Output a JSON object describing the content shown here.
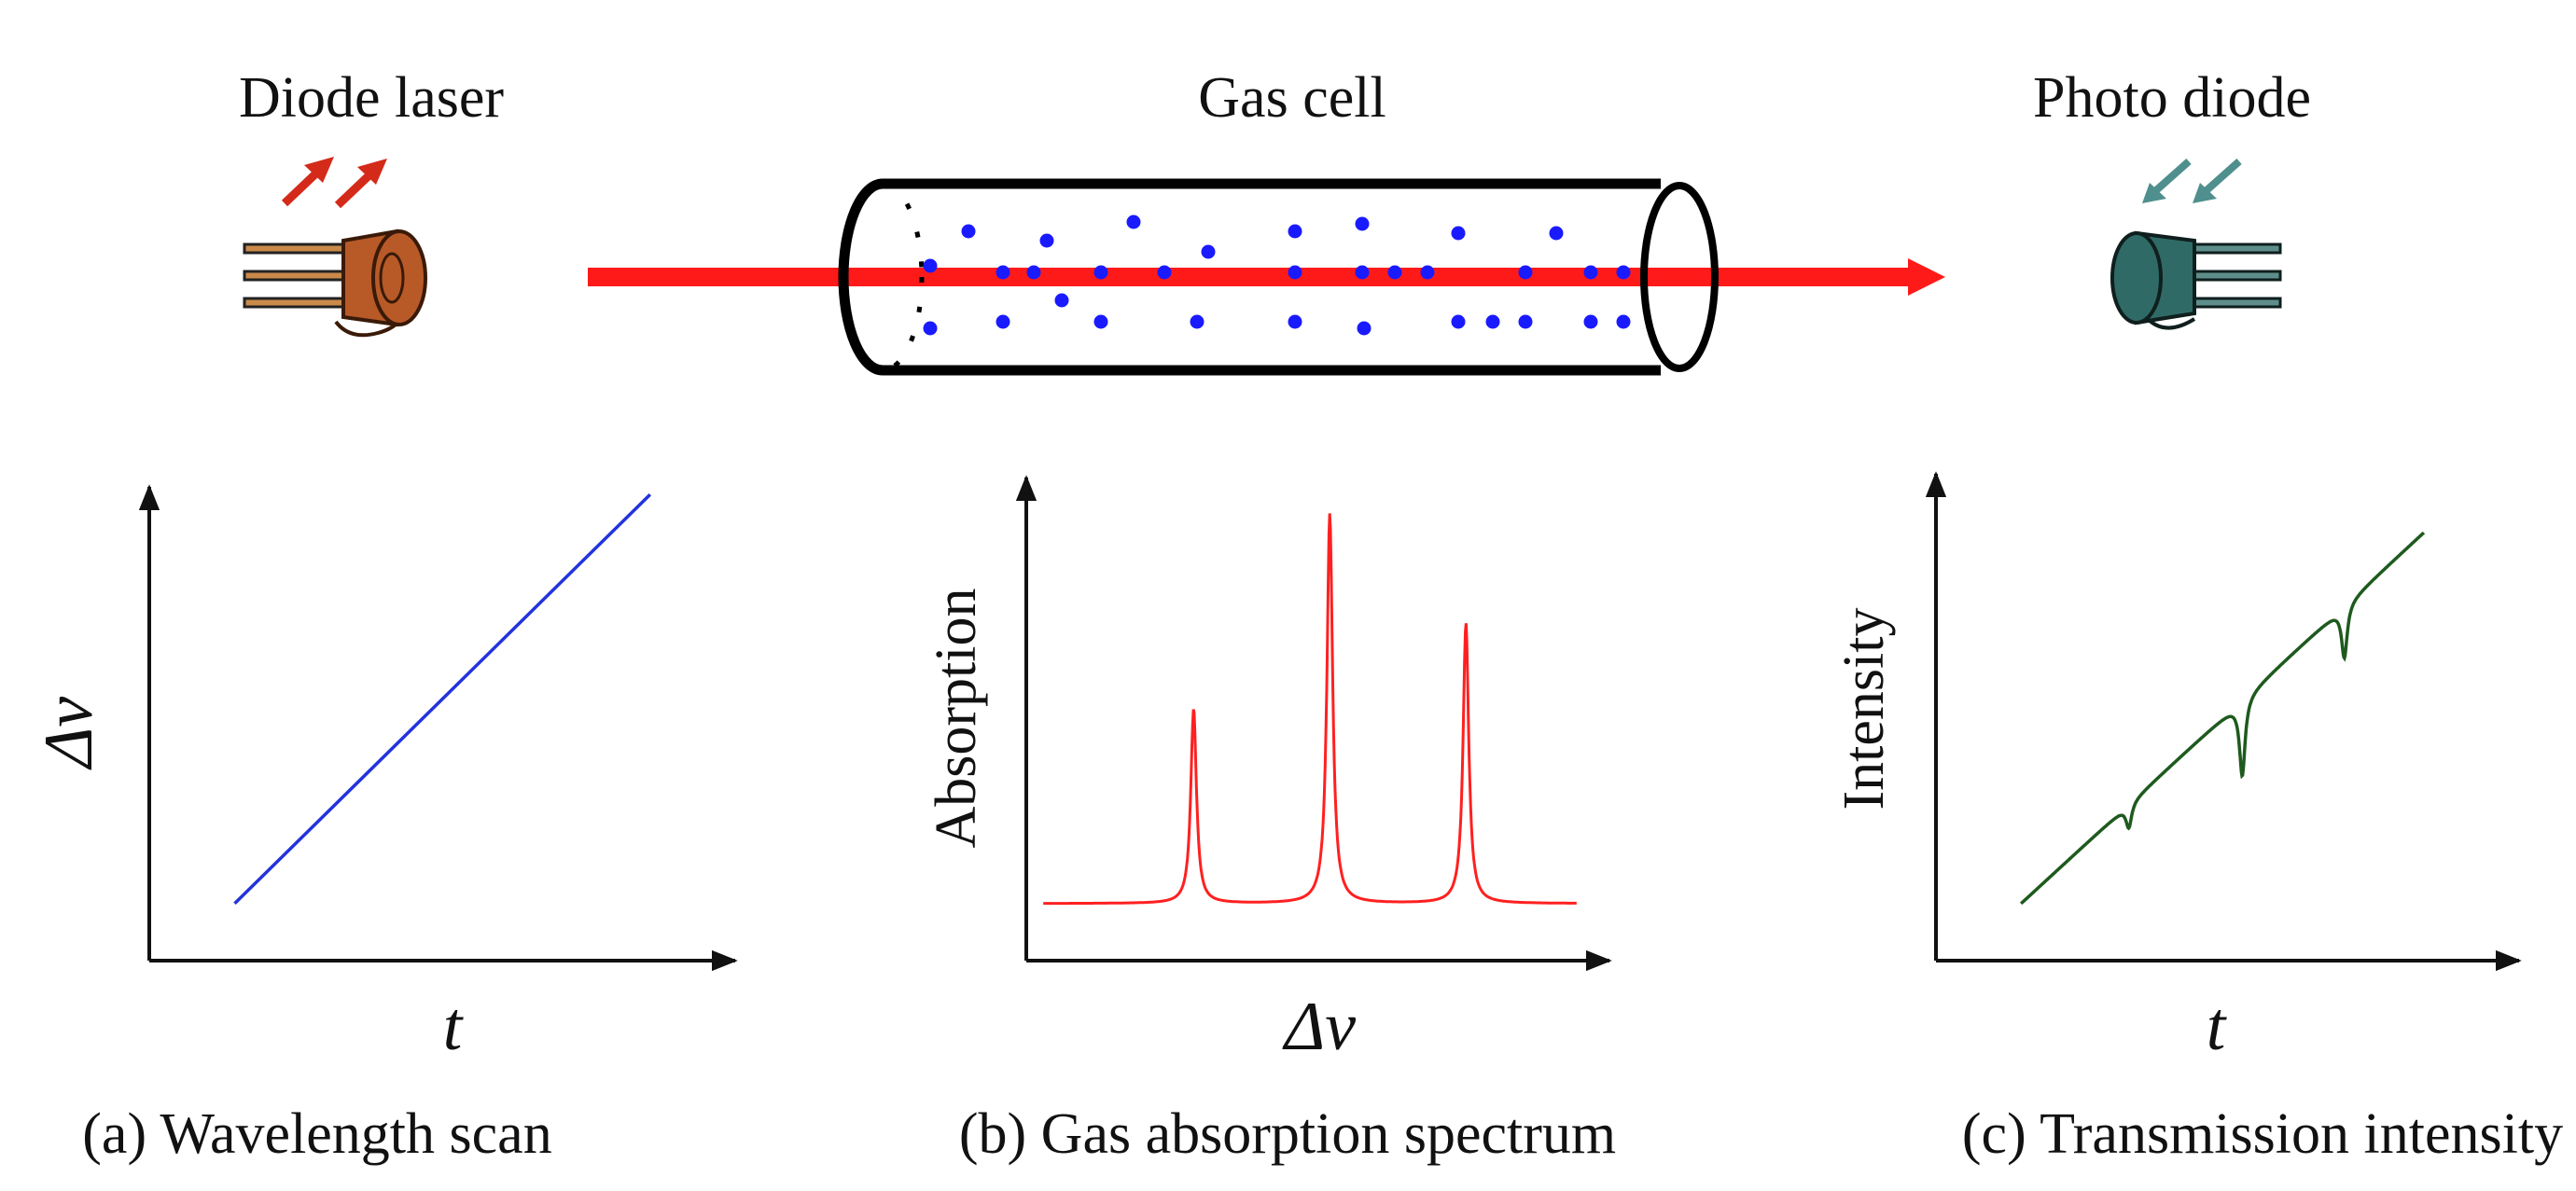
{
  "titles": {
    "laser": "Diode laser",
    "cell": "Gas cell",
    "detector": "Photo diode"
  },
  "colors": {
    "beam": "#ff1a1a",
    "molecules": "#1a1aff",
    "laser_body": "#b85a28",
    "detector_body": "#2f6a66",
    "arrow_red": "#d42a1a",
    "arrow_teal": "#4f8f8d",
    "scan_line": "#2233dd",
    "absorption_line": "#ff2020",
    "transmission_line": "#1e5a1e"
  },
  "icons": {
    "laser": "diode-laser-icon",
    "detector": "photo-diode-icon",
    "cell": "gas-cell-icon"
  },
  "chart_data": [
    {
      "type": "line",
      "id": "wavelength-scan",
      "title": "",
      "xlabel": "t",
      "ylabel": "Δν",
      "caption": "(a) Wavelength scan",
      "xlim": [
        0,
        1
      ],
      "ylim": [
        0,
        1
      ],
      "series": [
        {
          "name": "scan",
          "x": [
            0.15,
            0.88
          ],
          "y": [
            0.12,
            0.98
          ]
        }
      ]
    },
    {
      "type": "line",
      "id": "gas-absorption-spectrum",
      "title": "",
      "xlabel": "Δν",
      "ylabel": "Absorption",
      "caption": "(b) Gas absorption spectrum",
      "xlim": [
        0,
        1
      ],
      "ylim": [
        0,
        1
      ],
      "series": [
        {
          "name": "absorption",
          "baseline": 0.12,
          "x_range": [
            0.03,
            0.97
          ],
          "peaks": [
            {
              "center": 0.295,
              "height": 0.53,
              "width": 0.006
            },
            {
              "center": 0.535,
              "height": 0.94,
              "width": 0.006
            },
            {
              "center": 0.775,
              "height": 0.71,
              "width": 0.006
            }
          ]
        }
      ]
    },
    {
      "type": "line",
      "id": "transmission-intensity",
      "title": "",
      "xlabel": "t",
      "ylabel": "Intensity",
      "caption": "(c) Transmission intensity",
      "xlim": [
        0,
        1
      ],
      "ylim": [
        0,
        1
      ],
      "series": [
        {
          "name": "transmission",
          "start": [
            0.15,
            0.12
          ],
          "end": [
            0.86,
            0.9
          ],
          "dips": [
            {
              "center": 0.34,
              "depth": 0.05,
              "width": 0.006
            },
            {
              "center": 0.54,
              "depth": 0.16,
              "width": 0.006
            },
            {
              "center": 0.72,
              "depth": 0.11,
              "width": 0.006
            }
          ]
        }
      ]
    }
  ]
}
